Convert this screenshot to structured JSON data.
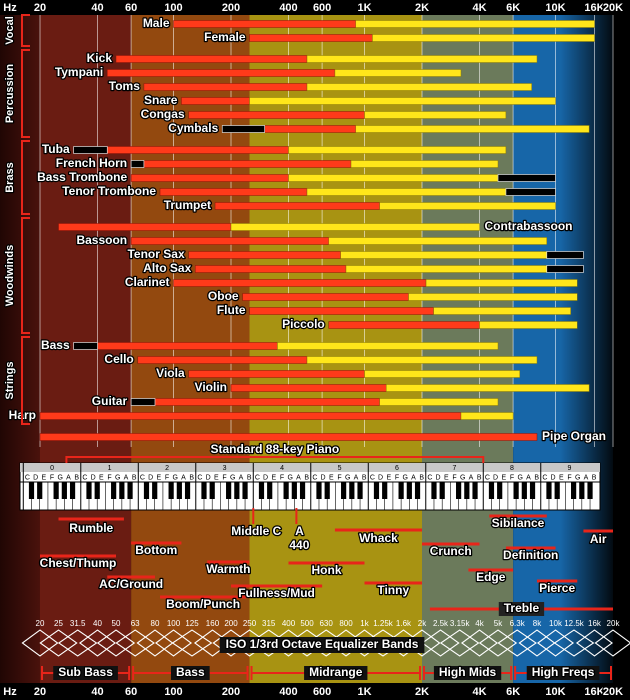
{
  "chart_data": {
    "type": "range",
    "x_label": "Hz",
    "xlim": [
      20,
      20000
    ],
    "log_x": true,
    "grid": true,
    "xticks": [
      20,
      40,
      60,
      100,
      200,
      400,
      600,
      {
        "value": 1000,
        "label": "1K"
      },
      {
        "value": 2000,
        "label": "2K"
      },
      {
        "value": 4000,
        "label": "4K"
      },
      {
        "value": 6000,
        "label": "6K"
      },
      {
        "value": 10000,
        "label": "10K"
      },
      {
        "value": 16000,
        "label": "16K"
      },
      {
        "value": 20000,
        "label": "20K"
      }
    ],
    "fundamental_color": "#ff3a1a",
    "harmonics_color": "#ffe61a",
    "extended_color": "#000000",
    "bands": [
      {
        "name": "Sub Bass",
        "range": [
          20,
          60
        ],
        "color": "#6a1c12"
      },
      {
        "name": "Bass",
        "range": [
          60,
          250
        ],
        "color": "#93490f"
      },
      {
        "name": "Midrange",
        "range": [
          250,
          2000
        ],
        "color": "#a89312"
      },
      {
        "name": "High Mids",
        "range": [
          2000,
          6000
        ],
        "color": "#6b7a5b"
      },
      {
        "name": "High Freqs",
        "range": [
          6000,
          20000
        ],
        "color": "#1766a8"
      }
    ],
    "groups": [
      {
        "name": "Vocal",
        "instruments": [
          {
            "name": "Male",
            "fundamental": [
              100,
              900
            ],
            "harmonics": 16000
          },
          {
            "name": "Female",
            "fundamental": [
              250,
              1100
            ],
            "harmonics": 16000
          }
        ]
      },
      {
        "name": "Percussion",
        "instruments": [
          {
            "name": "Kick",
            "fundamental": [
              50,
              500
            ],
            "harmonics": 8000
          },
          {
            "name": "Tympani",
            "fundamental": [
              45,
              700
            ],
            "harmonics": 3200
          },
          {
            "name": "Toms",
            "fundamental": [
              70,
              500
            ],
            "harmonics": 7500
          },
          {
            "name": "Snare",
            "fundamental": [
              110,
              250
            ],
            "harmonics": 10000
          },
          {
            "name": "Congas",
            "fundamental": [
              120,
              1000
            ],
            "harmonics": 5500
          },
          {
            "name": "Cymbals",
            "fundamental": [
              300,
              900
            ],
            "harmonics": 15000,
            "extended": [
              180,
              300
            ]
          }
        ]
      },
      {
        "name": "Brass",
        "instruments": [
          {
            "name": "Tuba",
            "fundamental": [
              45,
              400
            ],
            "harmonics": 5500,
            "extended": [
              30,
              45
            ]
          },
          {
            "name": "French Horn",
            "fundamental": [
              70,
              850
            ],
            "harmonics": 5000,
            "extended": [
              60,
              70
            ]
          },
          {
            "name": "Bass Trombone",
            "fundamental": [
              60,
              400
            ],
            "harmonics": 5000,
            "extended": [
              5000,
              10000
            ]
          },
          {
            "name": "Tenor Trombone",
            "fundamental": [
              85,
              500
            ],
            "harmonics": 5500,
            "extended": [
              5500,
              10000
            ]
          },
          {
            "name": "Trumpet",
            "fundamental": [
              165,
              1200
            ],
            "harmonics": 10000
          }
        ]
      },
      {
        "name": "Woodwinds",
        "instruments": [
          {
            "name": "Contrabassoon",
            "fundamental": [
              25,
              200
            ],
            "harmonics": 4000,
            "label_side": "right"
          },
          {
            "name": "Bassoon",
            "fundamental": [
              60,
              650
            ],
            "harmonics": 9000
          },
          {
            "name": "Tenor Sax",
            "fundamental": [
              120,
              750
            ],
            "harmonics": 9000,
            "extended": [
              9000,
              14000
            ]
          },
          {
            "name": "Alto Sax",
            "fundamental": [
              130,
              800
            ],
            "harmonics": 9000,
            "extended": [
              9000,
              14000
            ]
          },
          {
            "name": "Clarinet",
            "fundamental": [
              100,
              2100
            ],
            "harmonics": 13000
          },
          {
            "name": "Oboe",
            "fundamental": [
              230,
              1700
            ],
            "harmonics": 13000
          },
          {
            "name": "Flute",
            "fundamental": [
              250,
              2300
            ],
            "harmonics": 12000
          },
          {
            "name": "Piccolo",
            "fundamental": [
              650,
              4000
            ],
            "harmonics": 13000
          }
        ]
      },
      {
        "name": "Strings",
        "instruments": [
          {
            "name": "Bass",
            "fundamental": [
              40,
              350
            ],
            "harmonics": 5000,
            "extended": [
              30,
              40
            ]
          },
          {
            "name": "Cello",
            "fundamental": [
              65,
              500
            ],
            "harmonics": 8000
          },
          {
            "name": "Viola",
            "fundamental": [
              120,
              1000
            ],
            "harmonics": 6500
          },
          {
            "name": "Violin",
            "fundamental": [
              200,
              1300
            ],
            "harmonics": 15000
          },
          {
            "name": "Guitar",
            "fundamental": [
              80,
              1200
            ],
            "harmonics": 5000,
            "extended": [
              60,
              80
            ]
          },
          {
            "name": "Harp",
            "fundamental": [
              20,
              3200
            ],
            "harmonics": 6000
          }
        ]
      }
    ],
    "others": [
      {
        "name": "Pipe Organ",
        "fundamental": [
          20,
          8000
        ],
        "label_side": "right"
      }
    ],
    "piano": {
      "title": "Standard 88-key Piano",
      "range": [
        27.5,
        4186
      ],
      "c0": 16.35,
      "notes": [
        "C",
        "D",
        "E",
        "F",
        "G",
        "A",
        "B"
      ],
      "octaves": [
        0,
        1,
        2,
        3,
        4,
        5,
        6,
        7,
        8,
        9
      ],
      "markers": [
        {
          "label": "Middle C",
          "value": 261.63
        },
        {
          "label": "A",
          "value": 440
        }
      ]
    },
    "descriptors": [
      {
        "label": "Rumble",
        "range": [
          25,
          55
        ]
      },
      {
        "label": "Chest/Thump",
        "range": [
          20,
          50
        ]
      },
      {
        "label": "Bottom",
        "range": [
          60,
          110
        ]
      },
      {
        "label": "AC/Ground",
        "range": [
          45,
          80
        ]
      },
      {
        "label": "Warmth",
        "range": [
          150,
          250
        ]
      },
      {
        "label": "Boom/Punch",
        "range": [
          85,
          240
        ]
      },
      {
        "label": "Fullness/Mud",
        "range": [
          200,
          600
        ]
      },
      {
        "label": "Honk",
        "range": [
          400,
          1000
        ]
      },
      {
        "label": "Whack",
        "range": [
          700,
          2000
        ]
      },
      {
        "label": "Tinny",
        "range": [
          1000,
          2000
        ]
      },
      {
        "label": "Crunch",
        "range": [
          2000,
          4000
        ]
      },
      {
        "label": "Edge",
        "range": [
          3500,
          6000
        ]
      },
      {
        "label": "Sibilance",
        "range": [
          4500,
          9000
        ]
      },
      {
        "label": "Definition",
        "range": [
          5500,
          10000
        ]
      },
      {
        "label": "Pierce",
        "range": [
          8000,
          13000
        ]
      },
      {
        "label": "Air",
        "range": [
          14000,
          20000
        ]
      },
      {
        "label": "Treble",
        "range": [
          2200,
          20000
        ]
      }
    ],
    "iso": {
      "title": "ISO 1/3rd Octave Equalizer Bands",
      "bands": [
        20,
        25,
        31.5,
        40,
        50,
        63,
        80,
        100,
        125,
        160,
        200,
        250,
        315,
        400,
        500,
        630,
        800,
        {
          "value": 1000,
          "label": "1k"
        },
        {
          "value": 1250,
          "label": "1.25k"
        },
        {
          "value": 1600,
          "label": "1.6k"
        },
        {
          "value": 2000,
          "label": "2k"
        },
        {
          "value": 2500,
          "label": "2.5k"
        },
        {
          "value": 3150,
          "label": "3.15k"
        },
        {
          "value": 4000,
          "label": "4k"
        },
        {
          "value": 5000,
          "label": "5k"
        },
        {
          "value": 6300,
          "label": "6.3k"
        },
        {
          "value": 8000,
          "label": "8k"
        },
        {
          "value": 10000,
          "label": "10k"
        },
        {
          "value": 12500,
          "label": "12.5k"
        },
        {
          "value": 16000,
          "label": "16k"
        },
        {
          "value": 20000,
          "label": "20k"
        }
      ]
    }
  }
}
